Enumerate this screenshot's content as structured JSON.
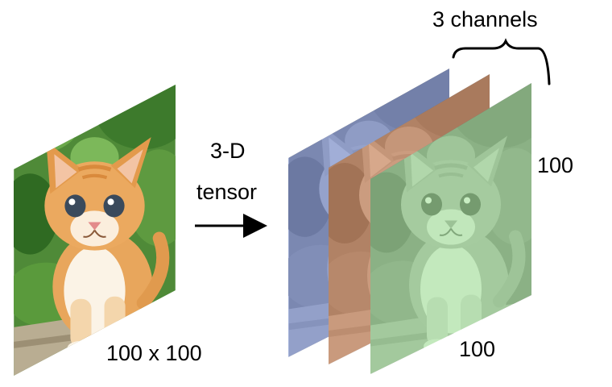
{
  "input_image": {
    "size_label": "100 x 100",
    "subject_icon": "kitten-photo"
  },
  "arrow": {
    "label_line1": "3-D",
    "label_line2": "tensor",
    "icon": "right-arrow-icon"
  },
  "tensor": {
    "channels_label": "3 channels",
    "height_label": "100",
    "width_label": "100",
    "channels": [
      {
        "name": "blue-channel",
        "color": "#8e9fd0"
      },
      {
        "name": "red-channel",
        "color": "#c99170"
      },
      {
        "name": "green-channel",
        "color": "#9cd297"
      }
    ]
  }
}
